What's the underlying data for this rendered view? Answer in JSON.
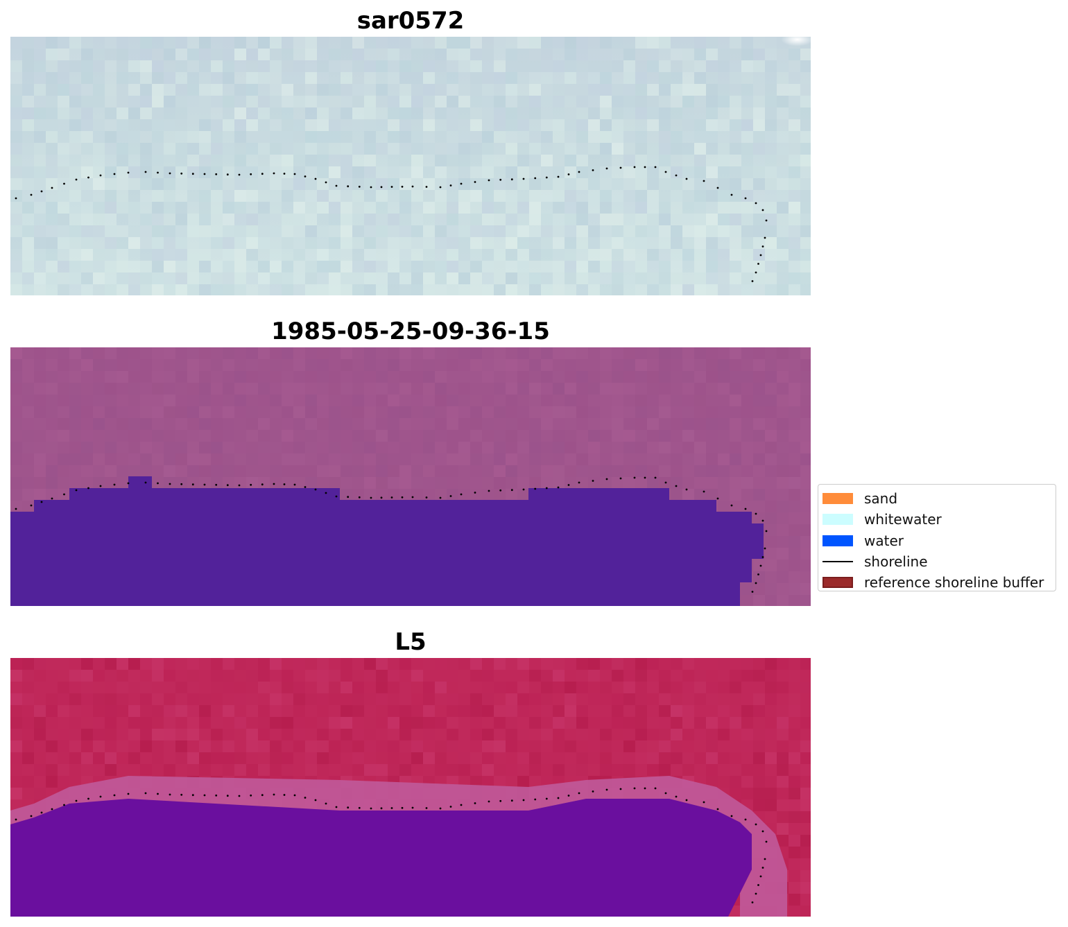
{
  "panels": [
    {
      "title": "sar0572"
    },
    {
      "title": "1985-05-25-09-36-15"
    },
    {
      "title": "L5"
    }
  ],
  "legend": {
    "items": [
      {
        "label": "sand",
        "kind": "patch",
        "color": "#ff8c3a"
      },
      {
        "label": "whitewater",
        "kind": "patch",
        "color": "#ccfdff"
      },
      {
        "label": "water",
        "kind": "patch",
        "color": "#0055ff"
      },
      {
        "label": "shoreline",
        "kind": "line",
        "color": "#000000"
      },
      {
        "label": "reference shoreline buffer",
        "kind": "patch",
        "color": "#9b2a2a"
      }
    ]
  },
  "colors": {
    "rgb_base": "#c4dade",
    "classified_land": "#a0568d",
    "classified_water": "#52229a",
    "mndwi_land": "#c0285a",
    "mndwi_water": "#5e0a9c",
    "shoreline": "#000000"
  }
}
